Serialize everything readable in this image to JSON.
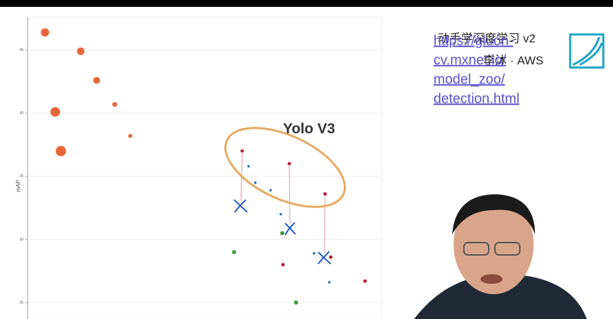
{
  "chart_data": {
    "type": "scatter",
    "y_label": "mAP",
    "xlim": [
      0,
      100
    ],
    "ylim": [
      23.7,
      47.6
    ],
    "yticks": [
      25,
      30,
      35,
      40,
      45
    ],
    "grid": true,
    "series": [
      {
        "name": "orange",
        "color": "#e8673a",
        "x": [
          4.9,
          15.0,
          19.5,
          24.6,
          29.0,
          7.8,
          9.4
        ],
        "values": [
          46.4,
          44.9,
          42.6,
          40.7,
          38.2,
          40.1,
          37.0
        ],
        "sizes": [
          6,
          5.5,
          5,
          3.5,
          3,
          7,
          7.5
        ]
      },
      {
        "name": "red",
        "color": "#b5173a",
        "size": 2.5,
        "x": [
          60.6,
          73.9,
          84.0,
          72.1,
          85.6,
          95.3
        ],
        "values": [
          37.0,
          36.0,
          33.6,
          28.0,
          28.6,
          26.7
        ]
      },
      {
        "name": "blue",
        "color": "#2f6ea8",
        "size": 1.8,
        "x": [
          62.4,
          64.3,
          68.6,
          71.5,
          80.9,
          85.2
        ],
        "values": [
          35.8,
          34.5,
          33.9,
          32.0,
          28.9,
          26.6
        ]
      },
      {
        "name": "green",
        "color": "#3f9a3f",
        "size": 3,
        "x": [
          58.3,
          71.9,
          75.8
        ],
        "values": [
          29.0,
          30.5,
          25.0
        ]
      }
    ]
  },
  "annotation": "Yolo V3",
  "link": [
    "https://gluon-",
    "cv.mxnet.io/",
    "model_zoo/",
    "detection.html"
  ],
  "course": {
    "title": "动手学深度学习 v2",
    "author": "李沐 · AWS"
  }
}
